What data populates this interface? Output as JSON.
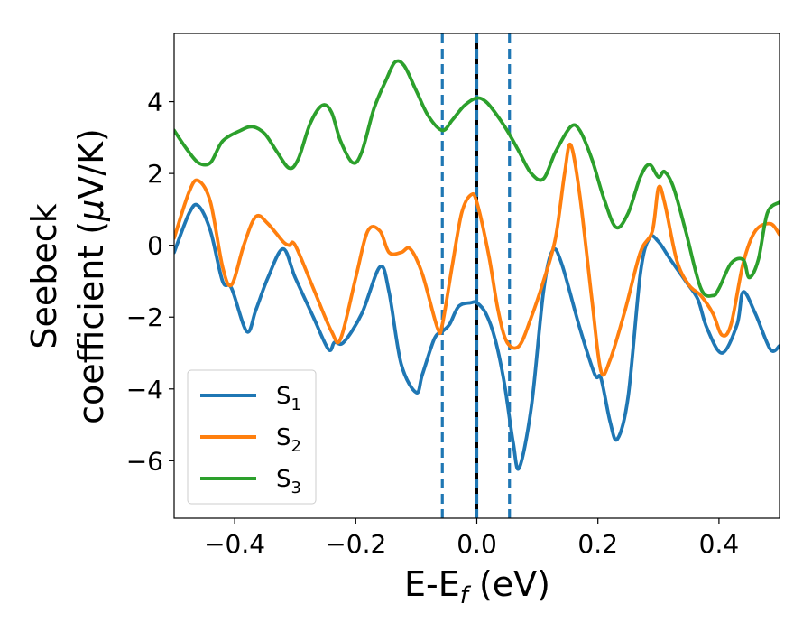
{
  "chart_data": {
    "type": "line",
    "xlabel": "E-E",
    "xlabel_sub": "f",
    "xlabel_unit": " (eV)",
    "ylabel_line1": "Seebeck",
    "ylabel_line2": "coefficient  (",
    "ylabel_mu": "μ",
    "ylabel_unit": "V/K)",
    "xlim": [
      -0.5,
      0.5
    ],
    "ylim": [
      -7.6,
      5.9
    ],
    "xticks": [
      -0.4,
      -0.2,
      0.0,
      0.2,
      0.4
    ],
    "xtick_labels": [
      "−0.4",
      "−0.2",
      "0.0",
      "0.2",
      "0.4"
    ],
    "yticks": [
      -6,
      -4,
      -2,
      0,
      2,
      4
    ],
    "ytick_labels": [
      "−6",
      "−4",
      "−2",
      "0",
      "2",
      "4"
    ],
    "grid": false,
    "legend_position": "lower-left",
    "vertical_lines": [
      {
        "x": -0.057,
        "style": "dashed",
        "color": "#1f77b4"
      },
      {
        "x": 0.0,
        "style": "solid",
        "color": "#000000"
      },
      {
        "x": 0.0,
        "style": "dashed",
        "color": "#1f77b4"
      },
      {
        "x": 0.054,
        "style": "dashed",
        "color": "#1f77b4"
      }
    ],
    "series": [
      {
        "name": "S",
        "sub": "1",
        "color": "#1f77b4",
        "x": [
          -0.5,
          -0.475,
          -0.46,
          -0.44,
          -0.42,
          -0.405,
          -0.38,
          -0.365,
          -0.345,
          -0.32,
          -0.3,
          -0.27,
          -0.245,
          -0.235,
          -0.22,
          -0.19,
          -0.16,
          -0.145,
          -0.125,
          -0.1,
          -0.09,
          -0.07,
          -0.057,
          -0.045,
          -0.03,
          -0.01,
          0.0,
          0.015,
          0.03,
          0.045,
          0.06,
          0.07,
          0.09,
          0.11,
          0.125,
          0.14,
          0.17,
          0.195,
          0.205,
          0.22,
          0.232,
          0.25,
          0.27,
          0.285,
          0.3,
          0.32,
          0.345,
          0.365,
          0.38,
          0.405,
          0.43,
          0.44,
          0.46,
          0.485,
          0.5
        ],
        "values": [
          -0.2,
          0.9,
          1.1,
          0.4,
          -1.0,
          -1.2,
          -2.4,
          -1.8,
          -0.9,
          -0.1,
          -0.9,
          -2.0,
          -2.9,
          -2.7,
          -2.7,
          -1.9,
          -0.6,
          -1.3,
          -3.3,
          -4.1,
          -3.6,
          -2.6,
          -2.4,
          -2.2,
          -1.7,
          -1.6,
          -1.6,
          -1.9,
          -2.6,
          -3.8,
          -5.5,
          -6.2,
          -4.5,
          -1.3,
          -0.15,
          -0.5,
          -2.3,
          -3.6,
          -3.7,
          -4.9,
          -5.4,
          -4.2,
          -0.8,
          0.2,
          0.1,
          -0.4,
          -1.0,
          -1.5,
          -2.3,
          -3.0,
          -2.2,
          -1.3,
          -1.9,
          -2.9,
          -2.8
        ]
      },
      {
        "name": "S",
        "sub": "2",
        "color": "#ff7f0e",
        "x": [
          -0.5,
          -0.475,
          -0.46,
          -0.44,
          -0.42,
          -0.405,
          -0.385,
          -0.365,
          -0.345,
          -0.32,
          -0.31,
          -0.3,
          -0.27,
          -0.24,
          -0.225,
          -0.2,
          -0.18,
          -0.16,
          -0.145,
          -0.125,
          -0.11,
          -0.09,
          -0.065,
          -0.057,
          -0.04,
          -0.025,
          -0.01,
          0.0,
          0.02,
          0.035,
          0.05,
          0.07,
          0.09,
          0.11,
          0.13,
          0.145,
          0.155,
          0.17,
          0.19,
          0.205,
          0.22,
          0.245,
          0.27,
          0.29,
          0.3,
          0.31,
          0.33,
          0.35,
          0.37,
          0.39,
          0.405,
          0.42,
          0.44,
          0.46,
          0.485,
          0.5
        ],
        "values": [
          0.2,
          1.5,
          1.8,
          1.2,
          -0.6,
          -1.1,
          0.0,
          0.8,
          0.6,
          0.1,
          0.0,
          0.0,
          -1.2,
          -2.4,
          -2.6,
          -0.9,
          0.4,
          0.4,
          -0.2,
          -0.2,
          -0.1,
          -0.8,
          -2.3,
          -2.2,
          -0.5,
          0.9,
          1.4,
          1.2,
          -0.3,
          -1.8,
          -2.7,
          -2.8,
          -2.0,
          -1.0,
          0.2,
          2.0,
          2.8,
          1.4,
          -1.5,
          -3.5,
          -3.2,
          -1.8,
          -0.2,
          0.4,
          1.6,
          1.2,
          -0.4,
          -1.1,
          -1.4,
          -1.9,
          -2.5,
          -2.2,
          -0.5,
          0.4,
          0.6,
          0.3
        ]
      },
      {
        "name": "S",
        "sub": "3",
        "color": "#2ca02c",
        "x": [
          -0.5,
          -0.48,
          -0.46,
          -0.44,
          -0.42,
          -0.39,
          -0.37,
          -0.35,
          -0.33,
          -0.31,
          -0.295,
          -0.275,
          -0.255,
          -0.24,
          -0.225,
          -0.205,
          -0.19,
          -0.17,
          -0.15,
          -0.135,
          -0.12,
          -0.1,
          -0.08,
          -0.057,
          -0.04,
          -0.02,
          0.0,
          0.015,
          0.03,
          0.05,
          0.07,
          0.09,
          0.11,
          0.13,
          0.155,
          0.17,
          0.19,
          0.21,
          0.23,
          0.25,
          0.27,
          0.285,
          0.3,
          0.31,
          0.325,
          0.345,
          0.37,
          0.39,
          0.4,
          0.42,
          0.44,
          0.45,
          0.465,
          0.48,
          0.5
        ],
        "values": [
          3.2,
          2.7,
          2.3,
          2.3,
          2.9,
          3.2,
          3.3,
          3.1,
          2.6,
          2.15,
          2.4,
          3.4,
          3.9,
          3.7,
          2.9,
          2.3,
          2.6,
          3.8,
          4.6,
          5.1,
          5.0,
          4.3,
          3.6,
          3.2,
          3.5,
          3.9,
          4.1,
          4.0,
          3.7,
          3.2,
          2.6,
          2.0,
          1.85,
          2.6,
          3.3,
          3.2,
          2.4,
          1.3,
          0.5,
          0.9,
          1.9,
          2.25,
          1.9,
          2.05,
          1.6,
          0.4,
          -1.2,
          -1.4,
          -1.2,
          -0.5,
          -0.4,
          -0.9,
          -0.4,
          0.9,
          1.2
        ]
      }
    ]
  }
}
